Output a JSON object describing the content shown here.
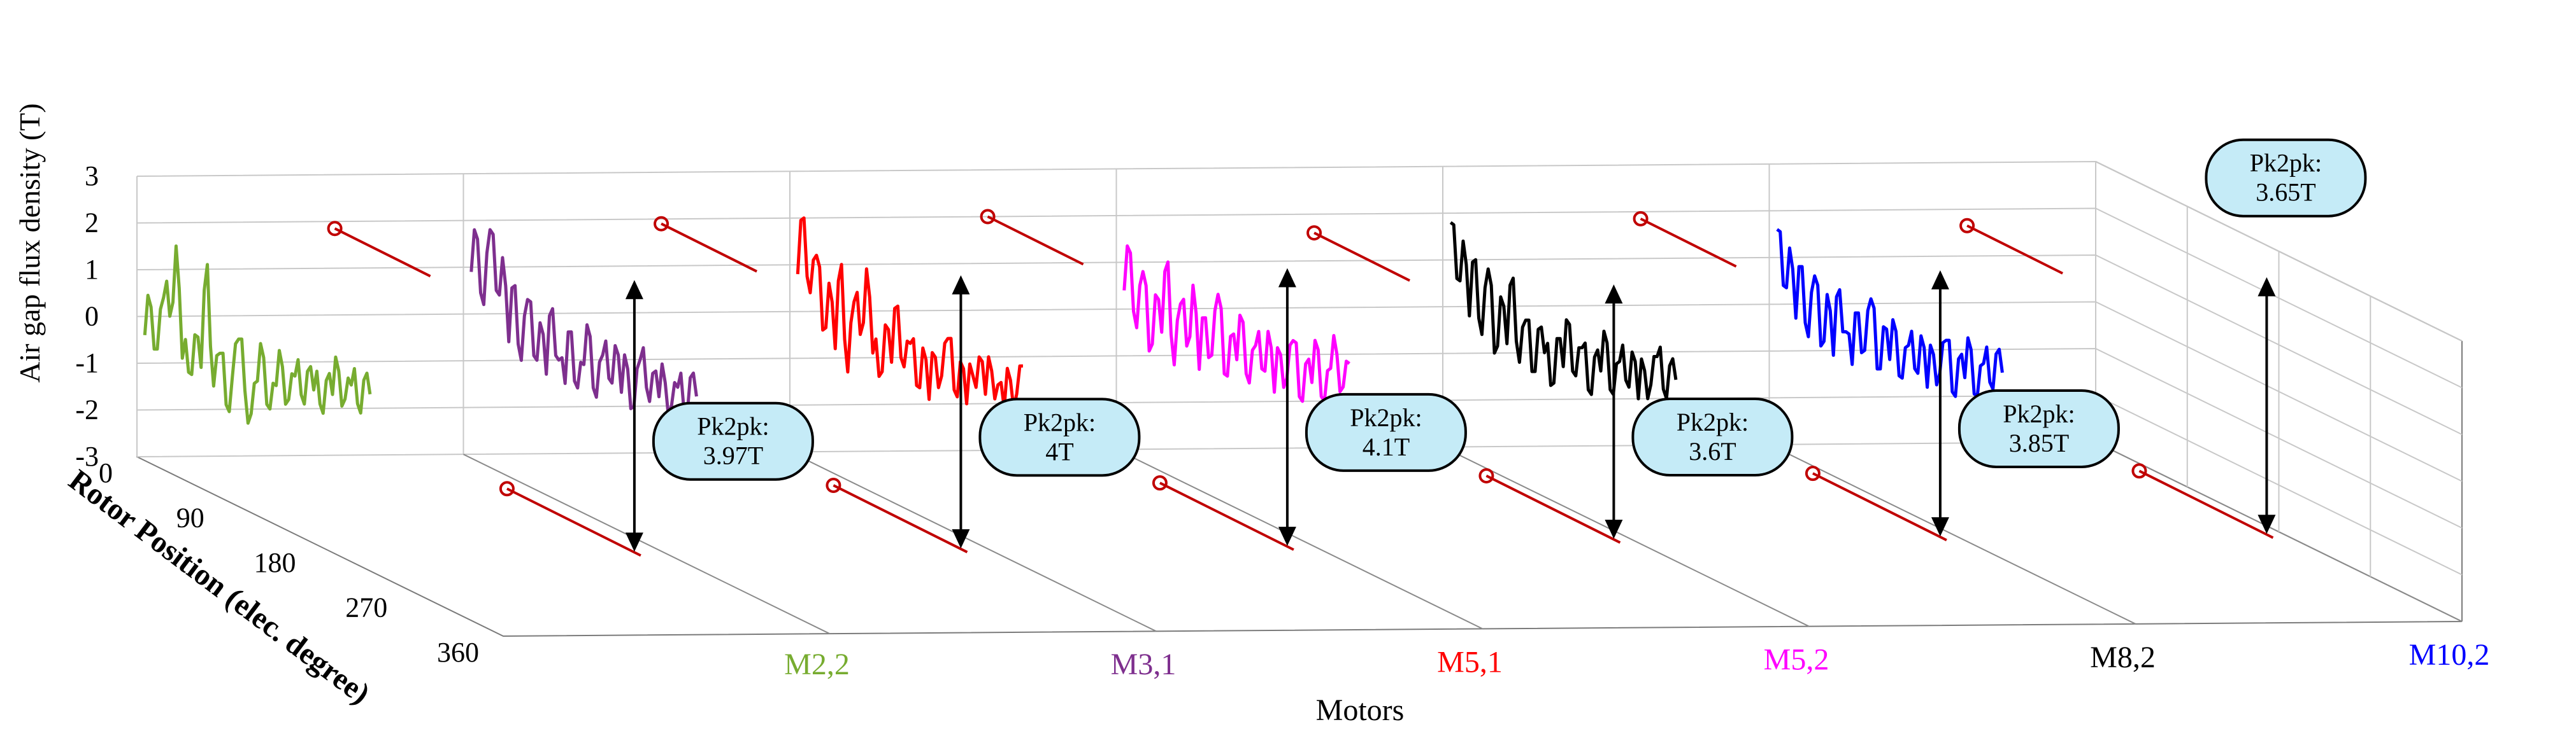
{
  "chart_data": {
    "type": "line",
    "projection": "3d-waterfall",
    "ylabel": "Air gap flux density (T)",
    "xlabel": "Rotor Position (elec. degree)",
    "zlabel": "Motors",
    "ylim": [
      -3,
      3
    ],
    "xlim": [
      0,
      360
    ],
    "y_ticks": [
      "3",
      "2",
      "1",
      "0",
      "-1",
      "-2",
      "-3"
    ],
    "x_ticks": [
      "0",
      "90",
      "180",
      "270",
      "360"
    ],
    "grid": true,
    "series": [
      {
        "name": "M2,2",
        "color": "#77ac30",
        "annotation": "Pk2pk:\n3.97T",
        "max": 1.85,
        "min": -2.12,
        "samples": [
          [
            0,
            -0.4
          ],
          [
            10,
            0.2
          ],
          [
            20,
            -0.7
          ],
          [
            30,
            0.4
          ],
          [
            40,
            0.0
          ],
          [
            50,
            1.5
          ],
          [
            60,
            -0.9
          ],
          [
            70,
            -1.2
          ],
          [
            80,
            -0.4
          ],
          [
            90,
            -1.1
          ],
          [
            100,
            1.1
          ],
          [
            110,
            -1.5
          ],
          [
            120,
            -0.8
          ],
          [
            130,
            -1.9
          ],
          [
            140,
            -1.3
          ],
          [
            150,
            -0.5
          ],
          [
            160,
            -1.6
          ],
          [
            170,
            -2.1
          ],
          [
            180,
            -1.4
          ],
          [
            190,
            -0.9
          ],
          [
            200,
            -2.0
          ],
          [
            210,
            -1.5
          ],
          [
            220,
            -1.1
          ],
          [
            230,
            -1.8
          ],
          [
            240,
            -1.3
          ],
          [
            250,
            -1.7
          ],
          [
            260,
            -1.2
          ],
          [
            270,
            -1.6
          ],
          [
            280,
            -1.9
          ],
          [
            290,
            -1.4
          ],
          [
            300,
            -1.7
          ],
          [
            310,
            -1.2
          ],
          [
            320,
            -1.8
          ],
          [
            330,
            -1.5
          ],
          [
            340,
            -1.9
          ],
          [
            350,
            -1.4
          ],
          [
            360,
            -1.7
          ]
        ]
      },
      {
        "name": "M3,1",
        "color": "#7e2f8e",
        "annotation": "Pk2pk:\n4T",
        "max": 1.9,
        "min": -2.1,
        "samples": [
          [
            0,
            0.9
          ],
          [
            10,
            1.6
          ],
          [
            20,
            0.2
          ],
          [
            30,
            1.8
          ],
          [
            40,
            0.5
          ],
          [
            50,
            1.2
          ],
          [
            60,
            -0.6
          ],
          [
            70,
            0.6
          ],
          [
            80,
            -1.0
          ],
          [
            90,
            0.3
          ],
          [
            100,
            -0.9
          ],
          [
            110,
            -0.2
          ],
          [
            120,
            -1.3
          ],
          [
            130,
            0.1
          ],
          [
            140,
            -1.0
          ],
          [
            150,
            -1.5
          ],
          [
            160,
            -0.4
          ],
          [
            170,
            -1.6
          ],
          [
            180,
            -1.1
          ],
          [
            190,
            -0.5
          ],
          [
            200,
            -1.8
          ],
          [
            210,
            -0.9
          ],
          [
            220,
            -1.4
          ],
          [
            230,
            -0.7
          ],
          [
            240,
            -1.7
          ],
          [
            250,
            -1.2
          ],
          [
            260,
            -2.0
          ],
          [
            270,
            -1.0
          ],
          [
            280,
            -1.6
          ],
          [
            290,
            -1.3
          ],
          [
            300,
            -1.8
          ],
          [
            310,
            -1.5
          ],
          [
            320,
            -2.0
          ],
          [
            330,
            -1.6
          ],
          [
            340,
            -2.1
          ],
          [
            350,
            -1.4
          ],
          [
            360,
            -1.8
          ]
        ]
      },
      {
        "name": "M5,1",
        "color": "#ff0000",
        "annotation": "Pk2pk:\n4.1T",
        "max": 2.0,
        "min": -2.1,
        "samples": [
          [
            0,
            0.8
          ],
          [
            10,
            2.0
          ],
          [
            20,
            0.4
          ],
          [
            30,
            1.2
          ],
          [
            40,
            -0.4
          ],
          [
            50,
            0.6
          ],
          [
            60,
            -0.8
          ],
          [
            70,
            1.0
          ],
          [
            80,
            -1.3
          ],
          [
            90,
            0.2
          ],
          [
            100,
            -0.5
          ],
          [
            110,
            0.9
          ],
          [
            120,
            -0.9
          ],
          [
            130,
            -1.4
          ],
          [
            140,
            -0.3
          ],
          [
            150,
            -1.1
          ],
          [
            160,
            0.1
          ],
          [
            170,
            -1.2
          ],
          [
            180,
            -0.7
          ],
          [
            190,
            -1.6
          ],
          [
            200,
            -0.8
          ],
          [
            210,
            -1.9
          ],
          [
            220,
            -1.0
          ],
          [
            230,
            -1.4
          ],
          [
            240,
            -0.6
          ],
          [
            250,
            -1.7
          ],
          [
            260,
            -1.1
          ],
          [
            270,
            -2.0
          ],
          [
            280,
            -1.4
          ],
          [
            290,
            -1.0
          ],
          [
            300,
            -1.8
          ],
          [
            310,
            -1.3
          ],
          [
            320,
            -1.6
          ],
          [
            330,
            -2.1
          ],
          [
            340,
            -1.5
          ],
          [
            350,
            -1.8
          ],
          [
            360,
            -1.2
          ]
        ]
      },
      {
        "name": "M5,2",
        "color": "#ff00ff",
        "annotation": "Pk2pk:\n3.6T",
        "max": 1.6,
        "min": -2.0,
        "samples": [
          [
            0,
            0.4
          ],
          [
            10,
            1.2
          ],
          [
            20,
            -0.4
          ],
          [
            30,
            0.8
          ],
          [
            40,
            -0.9
          ],
          [
            50,
            0.3
          ],
          [
            60,
            -0.5
          ],
          [
            70,
            1.0
          ],
          [
            80,
            -1.2
          ],
          [
            90,
            0.1
          ],
          [
            100,
            -0.8
          ],
          [
            110,
            0.5
          ],
          [
            120,
            -1.3
          ],
          [
            130,
            -0.2
          ],
          [
            140,
            -1.0
          ],
          [
            150,
            0.3
          ],
          [
            160,
            -1.4
          ],
          [
            170,
            -0.6
          ],
          [
            180,
            -1.1
          ],
          [
            190,
            -0.3
          ],
          [
            200,
            -1.6
          ],
          [
            210,
            -0.8
          ],
          [
            220,
            -1.3
          ],
          [
            230,
            -0.5
          ],
          [
            240,
            -1.8
          ],
          [
            250,
            -1.0
          ],
          [
            260,
            -1.5
          ],
          [
            270,
            -0.7
          ],
          [
            280,
            -1.9
          ],
          [
            290,
            -1.2
          ],
          [
            300,
            -1.6
          ],
          [
            310,
            -0.9
          ],
          [
            320,
            -2.0
          ],
          [
            330,
            -1.3
          ],
          [
            340,
            -1.0
          ],
          [
            350,
            -1.7
          ],
          [
            360,
            -1.2
          ]
        ]
      },
      {
        "name": "M8,2",
        "color": "#000000",
        "annotation": "Pk2pk:\n3.85T",
        "max": 1.85,
        "min": -2.0,
        "samples": [
          [
            0,
            1.8
          ],
          [
            10,
            0.6
          ],
          [
            20,
            1.4
          ],
          [
            30,
            -0.2
          ],
          [
            40,
            1.0
          ],
          [
            50,
            -0.6
          ],
          [
            60,
            0.8
          ],
          [
            70,
            -1.0
          ],
          [
            80,
            0.2
          ],
          [
            90,
            -0.8
          ],
          [
            100,
            0.6
          ],
          [
            110,
            -1.2
          ],
          [
            120,
            -0.3
          ],
          [
            130,
            -1.4
          ],
          [
            140,
            -0.5
          ],
          [
            150,
            -1.0
          ],
          [
            160,
            -1.7
          ],
          [
            170,
            -0.7
          ],
          [
            180,
            -1.3
          ],
          [
            190,
            -0.4
          ],
          [
            200,
            -1.5
          ],
          [
            210,
            -0.9
          ],
          [
            220,
            -1.8
          ],
          [
            230,
            -1.1
          ],
          [
            240,
            -1.4
          ],
          [
            250,
            -0.8
          ],
          [
            260,
            -1.9
          ],
          [
            270,
            -1.2
          ],
          [
            280,
            -1.6
          ],
          [
            290,
            -1.0
          ],
          [
            300,
            -2.0
          ],
          [
            310,
            -1.4
          ],
          [
            320,
            -1.7
          ],
          [
            330,
            -1.1
          ],
          [
            340,
            -1.8
          ],
          [
            350,
            -1.3
          ],
          [
            360,
            -1.6
          ]
        ]
      },
      {
        "name": "M10,2",
        "color": "#0000ff",
        "annotation": "Pk2pk:\n3.65T",
        "max": 1.65,
        "min": -2.0,
        "samples": [
          [
            0,
            1.6
          ],
          [
            10,
            0.4
          ],
          [
            20,
            1.2
          ],
          [
            30,
            -0.3
          ],
          [
            40,
            0.8
          ],
          [
            50,
            -0.7
          ],
          [
            60,
            0.6
          ],
          [
            70,
            -0.9
          ],
          [
            80,
            0.2
          ],
          [
            90,
            -1.1
          ],
          [
            100,
            0.3
          ],
          [
            110,
            -0.6
          ],
          [
            120,
            -1.3
          ],
          [
            130,
            -0.2
          ],
          [
            140,
            -1.0
          ],
          [
            150,
            0.1
          ],
          [
            160,
            -1.4
          ],
          [
            170,
            -0.5
          ],
          [
            180,
            -1.2
          ],
          [
            190,
            -0.6
          ],
          [
            200,
            -1.6
          ],
          [
            210,
            -0.9
          ],
          [
            220,
            -1.4
          ],
          [
            230,
            -0.7
          ],
          [
            240,
            -1.8
          ],
          [
            250,
            -1.1
          ],
          [
            260,
            -1.5
          ],
          [
            270,
            -0.8
          ],
          [
            280,
            -1.9
          ],
          [
            290,
            -1.2
          ],
          [
            300,
            -1.6
          ],
          [
            310,
            -1.0
          ],
          [
            320,
            -2.0
          ],
          [
            330,
            -1.3
          ],
          [
            340,
            -1.7
          ],
          [
            350,
            -1.1
          ],
          [
            360,
            -1.5
          ]
        ]
      }
    ]
  }
}
